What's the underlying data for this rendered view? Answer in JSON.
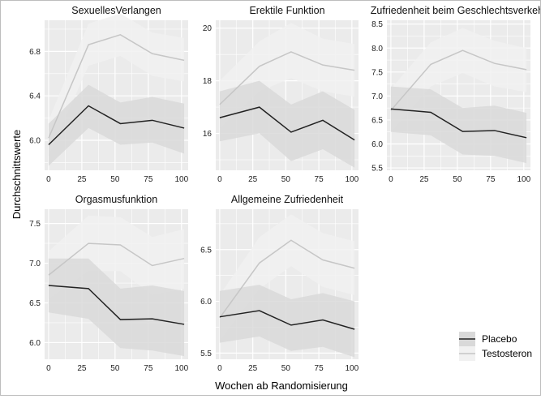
{
  "chart_data": {
    "type": "line",
    "xlabel": "Wochen ab Randomisierung",
    "ylabel": "Durchschnittswerte",
    "legend": {
      "position": "bottom-right",
      "entries": [
        "Placebo",
        "Testosteron"
      ]
    },
    "colors": {
      "Placebo": "#222222",
      "Testosteron": "#c6c6c6",
      "placebo_band": "#d9d9d9",
      "testosteron_band": "#f1f1f1",
      "panel_background": "#ebebeb",
      "grid": "#ffffff"
    },
    "grid": true,
    "panels": [
      {
        "title": "SexuellesVerlangen",
        "xlim": [
          -3,
          105
        ],
        "ylim": [
          5.73,
          7.08
        ],
        "xticks": [
          0,
          25,
          50,
          75,
          100
        ],
        "yticks": [
          6.0,
          6.4,
          6.8
        ],
        "ytick_labels": [
          "6.0",
          "6.4",
          "6.8"
        ],
        "series": [
          {
            "name": "Placebo",
            "x": [
              0,
              30,
              54,
              78,
              102
            ],
            "y": [
              5.96,
              6.31,
              6.15,
              6.18,
              6.11
            ],
            "lower": [
              5.77,
              6.11,
              5.96,
              5.98,
              5.88
            ],
            "upper": [
              6.15,
              6.5,
              6.34,
              6.39,
              6.33
            ]
          },
          {
            "name": "Testosteron",
            "x": [
              0,
              30,
              54,
              78,
              102
            ],
            "y": [
              6.02,
              6.86,
              6.95,
              6.78,
              6.72
            ],
            "lower": [
              5.86,
              6.67,
              6.76,
              6.58,
              6.53
            ],
            "upper": [
              6.18,
              7.05,
              7.14,
              6.97,
              6.92
            ]
          }
        ]
      },
      {
        "title": "Erektile Funktion",
        "xlim": [
          -3,
          105
        ],
        "ylim": [
          14.6,
          20.3
        ],
        "xticks": [
          0,
          25,
          50,
          75,
          100
        ],
        "yticks": [
          16,
          18,
          20
        ],
        "ytick_labels": [
          "16",
          "18",
          "20"
        ],
        "series": [
          {
            "name": "Placebo",
            "x": [
              0,
              30,
              54,
              78,
              102
            ],
            "y": [
              16.6,
              17.0,
              16.05,
              16.5,
              15.75
            ],
            "lower": [
              15.7,
              16.0,
              14.95,
              15.4,
              14.7
            ],
            "upper": [
              17.6,
              18.0,
              17.1,
              17.6,
              16.9
            ]
          },
          {
            "name": "Testosteron",
            "x": [
              0,
              30,
              54,
              78,
              102
            ],
            "y": [
              17.1,
              18.55,
              19.1,
              18.6,
              18.4
            ],
            "lower": [
              16.2,
              17.6,
              18.1,
              17.6,
              17.4
            ],
            "upper": [
              18.0,
              19.5,
              20.2,
              19.6,
              19.4
            ]
          }
        ]
      },
      {
        "title": "Zufriedenheit beim Geschlechtsverkehr",
        "xlim": [
          -3,
          105
        ],
        "ylim": [
          5.45,
          8.58
        ],
        "xticks": [
          0,
          25,
          50,
          75,
          100
        ],
        "yticks": [
          5.5,
          6.0,
          6.5,
          7.0,
          7.5,
          8.0,
          8.5
        ],
        "ytick_labels": [
          "5.5",
          "6.0",
          "6.5",
          "7.0",
          "7.5",
          "8.0",
          "8.5"
        ],
        "series": [
          {
            "name": "Placebo",
            "x": [
              0,
              30,
              54,
              78,
              102
            ],
            "y": [
              6.73,
              6.66,
              6.26,
              6.28,
              6.13
            ],
            "lower": [
              6.25,
              6.18,
              5.78,
              5.75,
              5.6
            ],
            "upper": [
              7.2,
              7.14,
              6.75,
              6.8,
              6.65
            ]
          },
          {
            "name": "Testosteron",
            "x": [
              0,
              30,
              54,
              78,
              102
            ],
            "y": [
              6.7,
              7.66,
              7.95,
              7.68,
              7.55
            ],
            "lower": [
              6.25,
              7.2,
              7.48,
              7.2,
              7.08
            ],
            "upper": [
              7.15,
              8.12,
              8.42,
              8.15,
              8.0
            ]
          }
        ]
      },
      {
        "title": "Orgasmusfunktion",
        "xlim": [
          -3,
          105
        ],
        "ylim": [
          5.79,
          7.68
        ],
        "xticks": [
          0,
          25,
          50,
          75,
          100
        ],
        "yticks": [
          6.0,
          6.5,
          7.0,
          7.5
        ],
        "ytick_labels": [
          "6.0",
          "6.5",
          "7.0",
          "7.5"
        ],
        "series": [
          {
            "name": "Placebo",
            "x": [
              0,
              30,
              54,
              78,
              102
            ],
            "y": [
              6.72,
              6.68,
              6.29,
              6.3,
              6.23
            ],
            "lower": [
              6.38,
              6.3,
              5.93,
              5.9,
              5.83
            ],
            "upper": [
              7.06,
              7.06,
              6.68,
              6.72,
              6.65
            ]
          },
          {
            "name": "Testosteron",
            "x": [
              0,
              30,
              54,
              78,
              102
            ],
            "y": [
              6.85,
              7.25,
              7.23,
              6.97,
              7.06
            ],
            "lower": [
              6.55,
              6.9,
              6.9,
              6.6,
              6.68
            ],
            "upper": [
              7.15,
              7.6,
              7.58,
              7.33,
              7.43
            ]
          }
        ]
      },
      {
        "title": "Allgemeine Zufriedenheit",
        "xlim": [
          -3,
          105
        ],
        "ylim": [
          5.44,
          6.89
        ],
        "xticks": [
          0,
          25,
          50,
          75,
          100
        ],
        "yticks": [
          5.5,
          6.0,
          6.5
        ],
        "ytick_labels": [
          "5.5",
          "6.0",
          "6.5"
        ],
        "series": [
          {
            "name": "Placebo",
            "x": [
              0,
              30,
              54,
              78,
              102
            ],
            "y": [
              5.85,
              5.91,
              5.77,
              5.82,
              5.73
            ],
            "lower": [
              5.6,
              5.66,
              5.52,
              5.56,
              5.46
            ],
            "upper": [
              6.1,
              6.16,
              6.02,
              6.08,
              6.0
            ]
          },
          {
            "name": "Testosteron",
            "x": [
              0,
              30,
              54,
              78,
              102
            ],
            "y": [
              5.84,
              6.37,
              6.59,
              6.4,
              6.32
            ],
            "lower": [
              5.62,
              6.12,
              6.34,
              6.14,
              6.06
            ],
            "upper": [
              6.06,
              6.62,
              6.84,
              6.66,
              6.58
            ]
          }
        ]
      }
    ]
  }
}
